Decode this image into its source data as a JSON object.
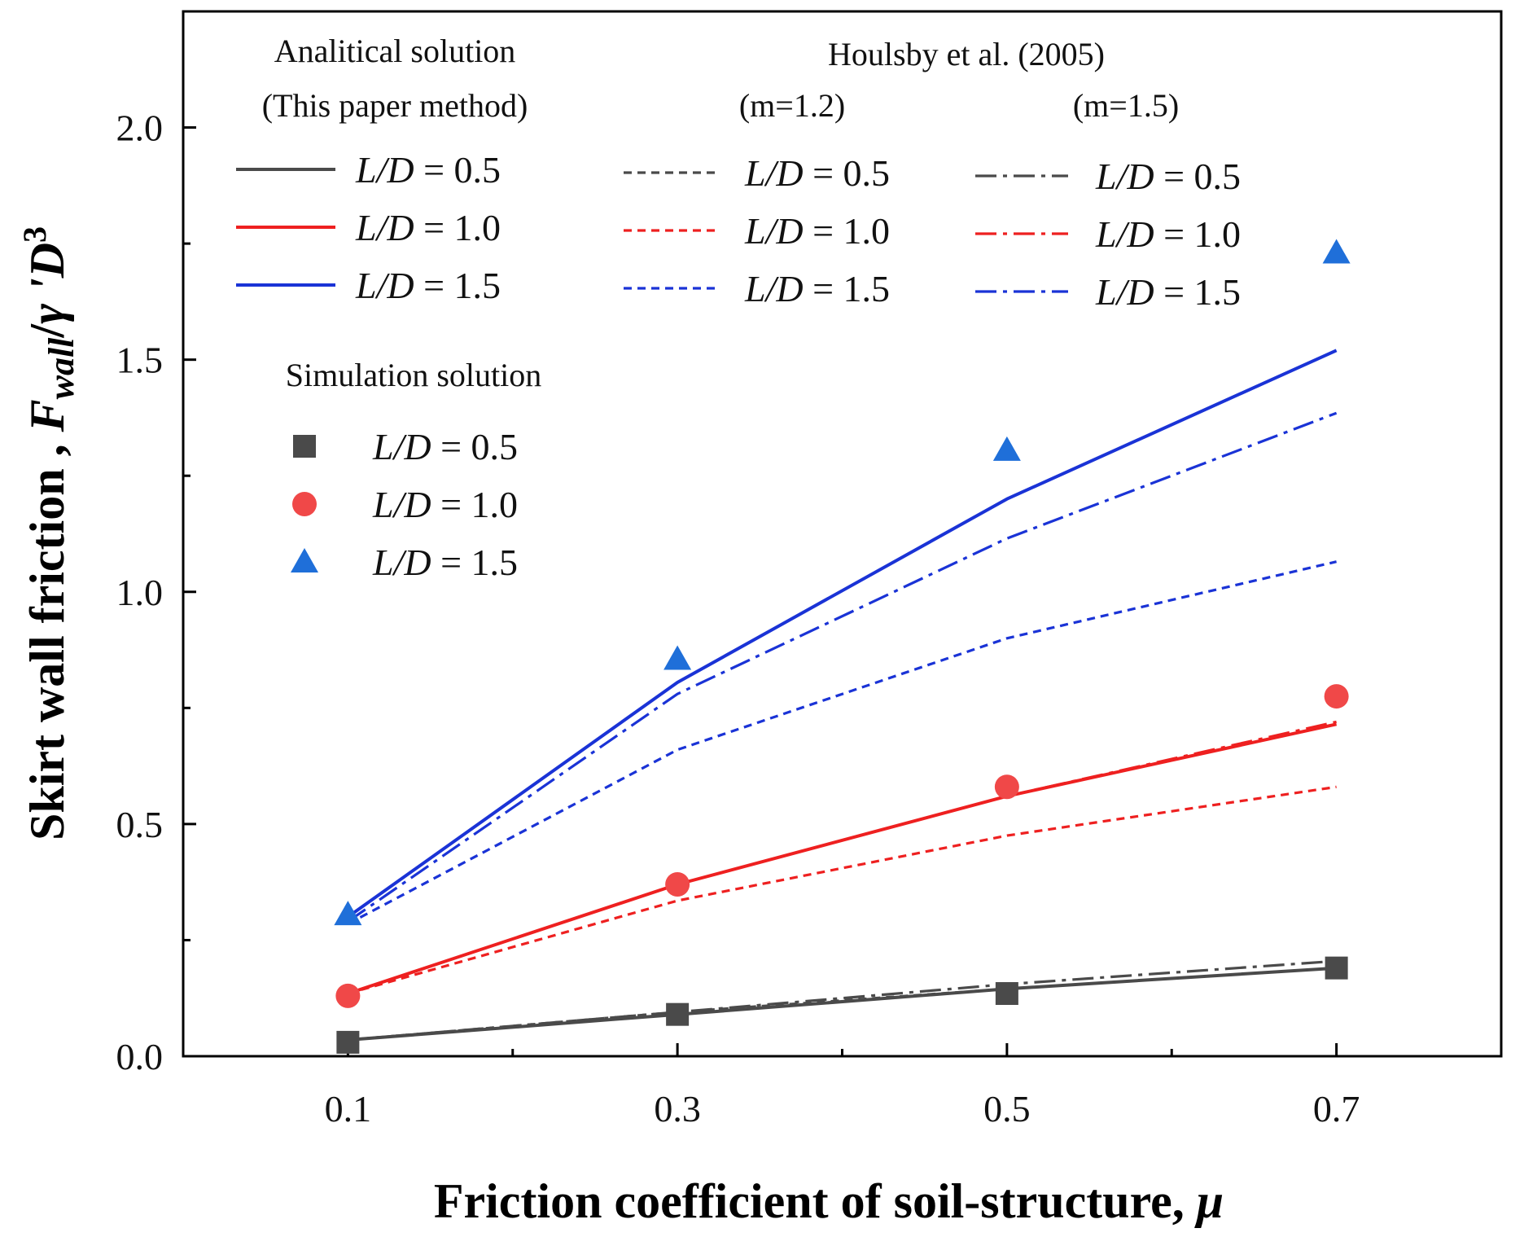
{
  "chart_data": {
    "type": "line",
    "xlabel_text": "Friction coefficient of soil-structure,",
    "xlabel_symbol": "μ",
    "ylabel": {
      "prefix": "Skirt wall friction , ",
      "F": "F",
      "sub": "wall",
      "slash": "/",
      "gamma": "γ",
      "prime": " 'D",
      "sup": "3"
    },
    "xlim": [
      0.0,
      0.8
    ],
    "ylim": [
      0.0,
      2.25
    ],
    "x_ticks": [
      0.1,
      0.3,
      0.5,
      0.7
    ],
    "x_tick_labels": [
      "0.1",
      "0.3",
      "0.5",
      "0.7"
    ],
    "x_minor_ticks": [
      0.2,
      0.4,
      0.6
    ],
    "y_ticks": [
      0.0,
      0.5,
      1.0,
      1.5,
      2.0
    ],
    "y_tick_labels": [
      "0.0",
      "0.5",
      "1.0",
      "1.5",
      "2.0"
    ],
    "y_minor_ticks": [
      0.25,
      0.75,
      1.25,
      1.75
    ],
    "x": [
      0.1,
      0.3,
      0.5,
      0.7
    ],
    "colors": {
      "L05": "#4a4a4a",
      "L10": "#ee2020",
      "L15": "#1a33d6",
      "sim_L10": "#f04848",
      "sim_L15": "#1f6fd9"
    },
    "series": [
      {
        "name": "Analytical L/D = 0.5",
        "group": "analytical",
        "style": "solid",
        "color": "#4a4a4a",
        "values": [
          0.035,
          0.09,
          0.145,
          0.19
        ]
      },
      {
        "name": "Analytical L/D = 1.0",
        "group": "analytical",
        "style": "solid",
        "color": "#ee2020",
        "values": [
          0.135,
          0.37,
          0.56,
          0.715
        ]
      },
      {
        "name": "Analytical L/D = 1.5",
        "group": "analytical",
        "style": "solid",
        "color": "#1a33d6",
        "values": [
          0.3,
          0.805,
          1.2,
          1.52
        ]
      },
      {
        "name": "Houlsby m=1.2 L/D = 0.5",
        "group": "houlsby_m12",
        "style": "dash",
        "color": "#4a4a4a",
        "values": [
          0.035,
          0.095,
          0.145,
          0.19
        ]
      },
      {
        "name": "Houlsby m=1.2 L/D = 1.0",
        "group": "houlsby_m12",
        "style": "dash",
        "color": "#ee2020",
        "values": [
          0.135,
          0.335,
          0.475,
          0.58
        ]
      },
      {
        "name": "Houlsby m=1.2 L/D = 1.5",
        "group": "houlsby_m12",
        "style": "dash",
        "color": "#1a33d6",
        "values": [
          0.285,
          0.66,
          0.9,
          1.065
        ]
      },
      {
        "name": "Houlsby m=1.5 L/D = 0.5",
        "group": "houlsby_m15",
        "style": "dashdot",
        "color": "#4a4a4a",
        "values": [
          0.035,
          0.095,
          0.155,
          0.205
        ]
      },
      {
        "name": "Houlsby m=1.5 L/D = 1.0",
        "group": "houlsby_m15",
        "style": "dashdot",
        "color": "#ee2020",
        "values": [
          0.135,
          0.37,
          0.56,
          0.72
        ]
      },
      {
        "name": "Houlsby m=1.5 L/D = 1.5",
        "group": "houlsby_m15",
        "style": "dashdot",
        "color": "#1a33d6",
        "values": [
          0.29,
          0.78,
          1.115,
          1.385
        ]
      },
      {
        "name": "Simulation L/D = 0.5",
        "group": "simulation",
        "marker": "square",
        "color": "#4a4a4a",
        "values": [
          0.03,
          0.09,
          0.135,
          0.19
        ]
      },
      {
        "name": "Simulation L/D = 1.0",
        "group": "simulation",
        "marker": "circle",
        "color": "#f04848",
        "values": [
          0.13,
          0.37,
          0.58,
          0.775
        ]
      },
      {
        "name": "Simulation L/D = 1.5",
        "group": "simulation",
        "marker": "triangle",
        "color": "#1f6fd9",
        "values": [
          0.305,
          0.855,
          1.305,
          1.73
        ]
      }
    ],
    "legend": {
      "analytical_title_1": "Analitical solution",
      "analytical_title_2": "(This paper method)",
      "houlsby_title": "Houlsby et al. (2005)",
      "m12_label": "(m=1.2)",
      "m15_label": "(m=1.5)",
      "simulation_title": "Simulation solution",
      "entries": [
        {
          "ld": "L/D",
          "value": "= 0.5"
        },
        {
          "ld": "L/D",
          "value": "= 1.0"
        },
        {
          "ld": "L/D",
          "value": "= 1.5"
        }
      ]
    }
  }
}
